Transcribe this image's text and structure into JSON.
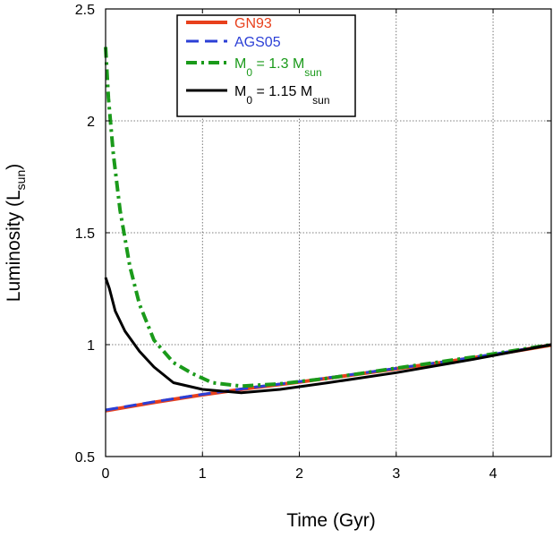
{
  "chart_data": {
    "type": "line",
    "title": "",
    "xlabel": "Time (Gyr)",
    "ylabel_main": "Luminosity (L",
    "ylabel_sub": "sun",
    "ylabel_tail": ")",
    "xlim": [
      0,
      4.6
    ],
    "ylim": [
      0.5,
      2.5
    ],
    "xticks": [
      0,
      1,
      2,
      3,
      4
    ],
    "xtick_labels": [
      "0",
      "1",
      "2",
      "3",
      "4"
    ],
    "yticks": [
      0.5,
      1,
      1.5,
      2,
      2.5
    ],
    "ytick_labels": [
      "0.5",
      "1",
      "1.5",
      "2",
      "2.5"
    ],
    "grid": true,
    "legend_position": "top-left",
    "series": [
      {
        "key": "gn93",
        "legend": {
          "main": "GN93",
          "sub1": "",
          "mid": "",
          "sub2": ""
        },
        "color": "#e8401c",
        "style": "solid",
        "x": [
          0,
          0.5,
          1.0,
          1.5,
          2.0,
          2.5,
          3.0,
          3.5,
          4.0,
          4.6
        ],
        "y": [
          0.705,
          0.742,
          0.776,
          0.806,
          0.833,
          0.862,
          0.892,
          0.922,
          0.955,
          0.998
        ]
      },
      {
        "key": "ags05",
        "legend": {
          "main": "AGS05",
          "sub1": "",
          "mid": "",
          "sub2": ""
        },
        "color": "#2b3fd6",
        "style": "dashed",
        "x": [
          0,
          0.5,
          1.0,
          1.5,
          2.0,
          2.5,
          3.0,
          3.5,
          4.0,
          4.6
        ],
        "y": [
          0.708,
          0.745,
          0.778,
          0.808,
          0.835,
          0.864,
          0.894,
          0.924,
          0.957,
          0.999
        ]
      },
      {
        "key": "m13",
        "legend": {
          "main": "M",
          "sub1": "0",
          "mid": " = 1.3 M",
          "sub2": "sun"
        },
        "color": "#1a9a1a",
        "style": "dashdot",
        "x": [
          0,
          0.03,
          0.08,
          0.15,
          0.25,
          0.35,
          0.5,
          0.7,
          0.9,
          1.1,
          1.4,
          1.8,
          2.3,
          3.0,
          3.8,
          4.6
        ],
        "y": [
          2.33,
          2.1,
          1.85,
          1.6,
          1.35,
          1.18,
          1.02,
          0.92,
          0.87,
          0.83,
          0.815,
          0.825,
          0.85,
          0.895,
          0.945,
          1.0
        ]
      },
      {
        "key": "m115",
        "legend": {
          "main": "M",
          "sub1": "0",
          "mid": " = 1.15 M",
          "sub2": "sun"
        },
        "color": "#000000",
        "style": "solid",
        "x": [
          0,
          0.04,
          0.1,
          0.2,
          0.35,
          0.5,
          0.7,
          1.0,
          1.4,
          1.8,
          2.3,
          3.0,
          3.8,
          4.6
        ],
        "y": [
          1.3,
          1.25,
          1.15,
          1.06,
          0.97,
          0.9,
          0.83,
          0.8,
          0.785,
          0.8,
          0.83,
          0.875,
          0.935,
          1.0
        ]
      }
    ]
  }
}
